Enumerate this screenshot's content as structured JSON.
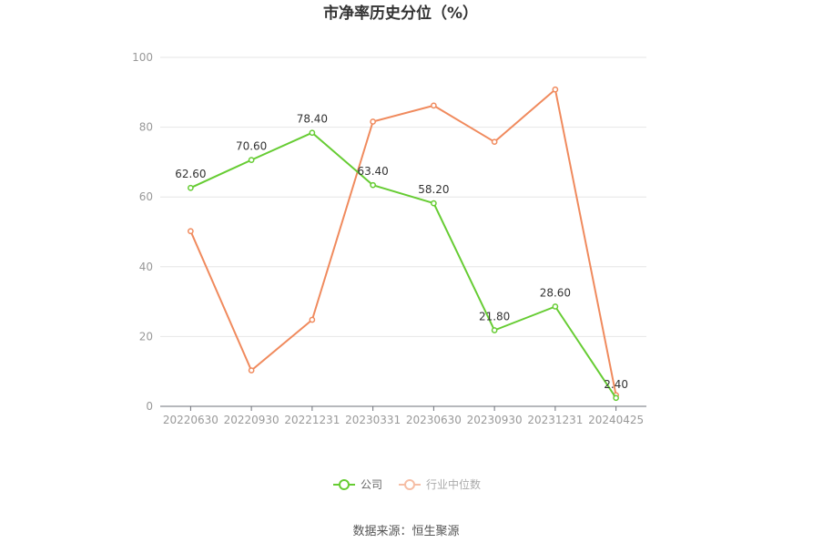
{
  "chart_data": {
    "type": "line",
    "title": "市净率历史分位（%）",
    "categories": [
      "20220630",
      "20220930",
      "20221231",
      "20230331",
      "20230630",
      "20230930",
      "20231231",
      "20240425"
    ],
    "series": [
      {
        "name": "公司",
        "color": "#66cc33",
        "values": [
          62.6,
          70.6,
          78.4,
          63.4,
          58.2,
          21.8,
          28.6,
          2.4
        ],
        "labels": [
          "62.60",
          "70.60",
          "78.40",
          "63.40",
          "58.20",
          "21.80",
          "28.60",
          "2.40"
        ]
      },
      {
        "name": "行业中位数",
        "color": "#f08a5d",
        "values": [
          50.2,
          10.3,
          24.8,
          81.6,
          86.2,
          75.8,
          90.8,
          3.2
        ]
      }
    ],
    "ylim": [
      0,
      100
    ],
    "yticks": [
      0,
      20,
      40,
      60,
      80,
      100
    ],
    "grid": true,
    "legend_position": "bottom"
  },
  "source_text": "数据来源：恒生聚源"
}
